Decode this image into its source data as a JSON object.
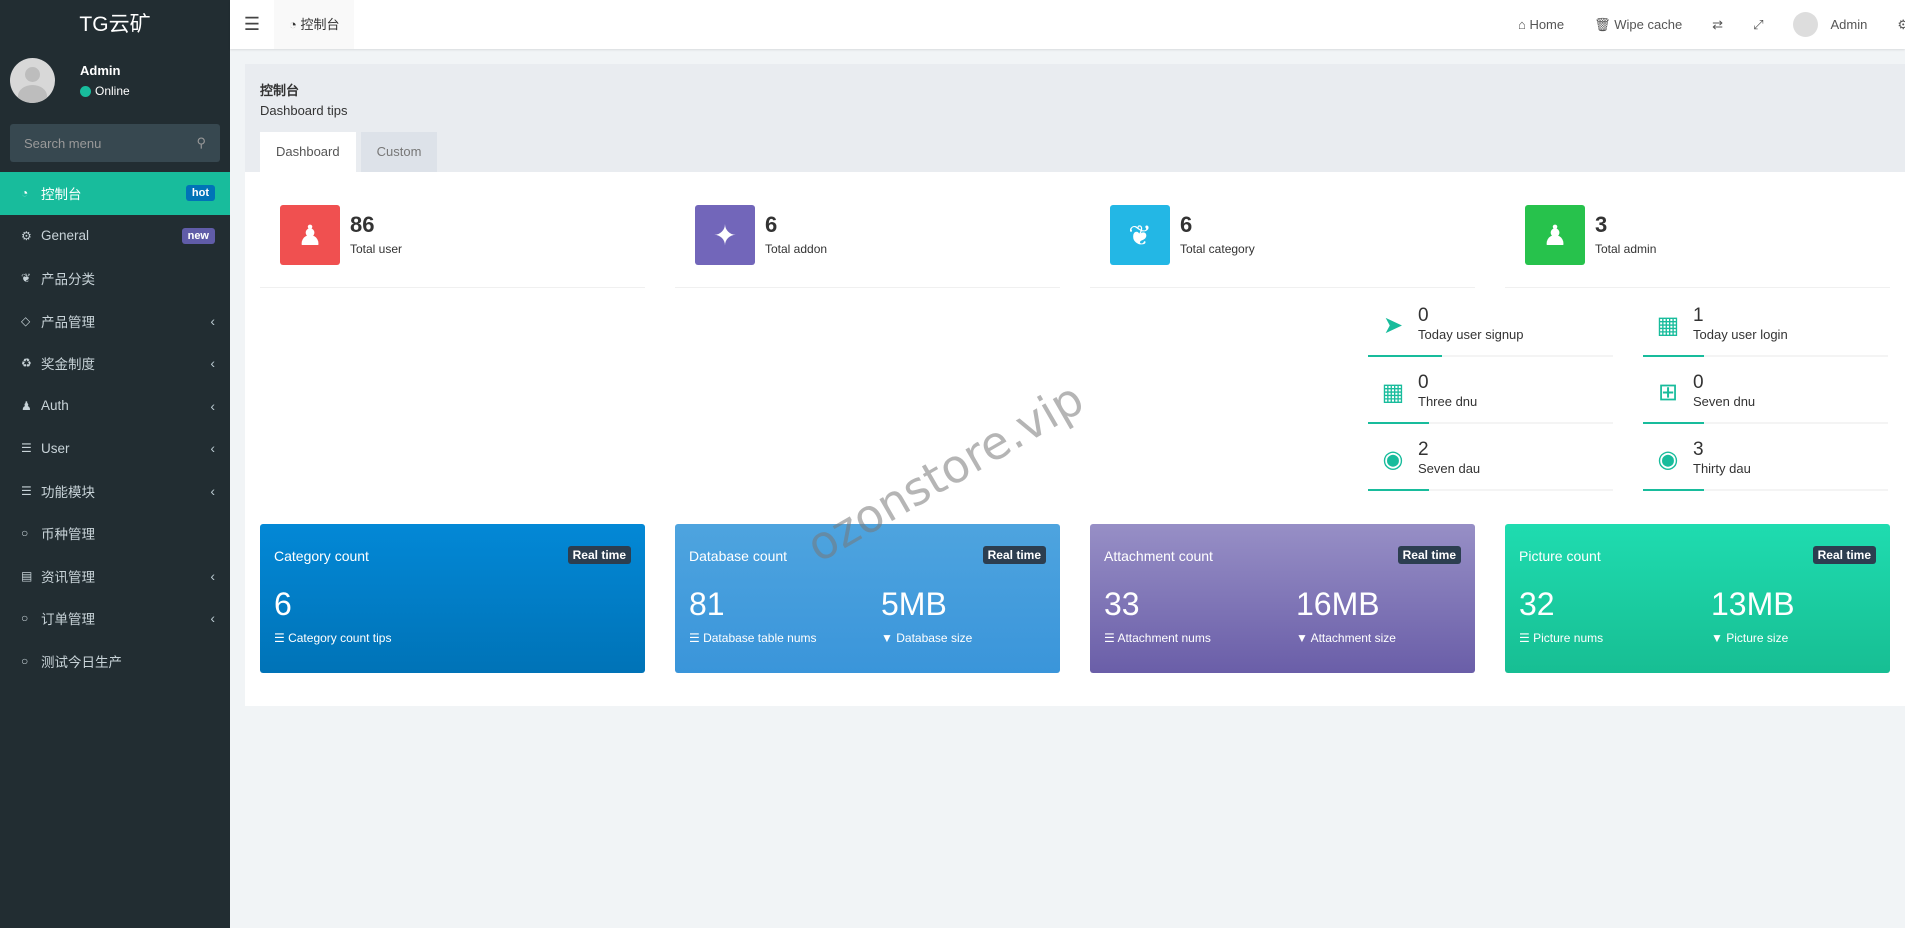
{
  "app": {
    "logo": "TG云矿",
    "watermark": "ozonstore.vip"
  },
  "user": {
    "name": "Admin",
    "status": "Online"
  },
  "search": {
    "placeholder": "Search menu"
  },
  "sidebar": {
    "items": [
      {
        "label": "控制台",
        "icon": "dashboard-icon",
        "badge": "hot",
        "badge_color": "#0073b7",
        "active": true
      },
      {
        "label": "General",
        "icon": "cogs-icon",
        "badge": "new",
        "badge_color": "#605ca8"
      },
      {
        "label": "产品分类",
        "icon": "leaf-icon"
      },
      {
        "label": "产品管理",
        "icon": "diamond-icon",
        "submenu": true
      },
      {
        "label": "奖金制度",
        "icon": "recycle-icon",
        "submenu": true
      },
      {
        "label": "Auth",
        "icon": "group-icon",
        "submenu": true
      },
      {
        "label": "User",
        "icon": "list-icon",
        "submenu": true
      },
      {
        "label": "功能模块",
        "icon": "list-icon",
        "submenu": true
      },
      {
        "label": "币种管理",
        "icon": "circle-icon"
      },
      {
        "label": "资讯管理",
        "icon": "newspaper-icon",
        "submenu": true
      },
      {
        "label": "订单管理",
        "icon": "circle-icon",
        "submenu": true
      },
      {
        "label": "测试今日生产",
        "icon": "circle-icon"
      }
    ]
  },
  "header": {
    "tab": "控制台",
    "home": "Home",
    "wipe": "Wipe cache",
    "admin": "Admin"
  },
  "page": {
    "title": "控制台",
    "tips": "Dashboard tips",
    "tabs": [
      "Dashboard",
      "Custom"
    ]
  },
  "stats": [
    {
      "value": "86",
      "label": "Total user",
      "color": "#f05050",
      "icon": "users-icon"
    },
    {
      "value": "6",
      "label": "Total addon",
      "color": "#7266ba",
      "icon": "magic-icon"
    },
    {
      "value": "6",
      "label": "Total category",
      "color": "#23b7e5",
      "icon": "leaf-icon"
    },
    {
      "value": "3",
      "label": "Total admin",
      "color": "#27c24c",
      "icon": "user-icon"
    }
  ],
  "mini": [
    {
      "value": "0",
      "label": "Today user signup",
      "icon": "rocket-icon",
      "progress": 30
    },
    {
      "value": "1",
      "label": "Today user login",
      "icon": "vcard-icon",
      "progress": 25
    },
    {
      "value": "0",
      "label": "Three dnu",
      "icon": "calendar-icon",
      "progress": 25
    },
    {
      "value": "0",
      "label": "Seven dnu",
      "icon": "calendar-plus-icon",
      "progress": 25
    },
    {
      "value": "2",
      "label": "Seven dau",
      "icon": "user-circle-icon",
      "progress": 25
    },
    {
      "value": "3",
      "label": "Thirty dau",
      "icon": "user-circle-icon",
      "progress": 25
    }
  ],
  "cards": [
    {
      "title": "Category count",
      "badge": "Real time",
      "v1": "6",
      "l1": "Category count tips",
      "gradient": [
        "#0388d6",
        "#0073b7"
      ]
    },
    {
      "title": "Database count",
      "badge": "Real time",
      "v1": "81",
      "l1": "Database table nums",
      "v2": "5MB",
      "l2": "Database size",
      "gradient": [
        "#4ea4df",
        "#3a95da"
      ]
    },
    {
      "title": "Attachment count",
      "badge": "Real time",
      "v1": "33",
      "l1": "Attachment nums",
      "v2": "16MB",
      "l2": "Attachment size",
      "gradient": [
        "#978fc6",
        "#6a5ea8"
      ]
    },
    {
      "title": "Picture count",
      "badge": "Real time",
      "v1": "32",
      "l1": "Picture nums",
      "v2": "13MB",
      "l2": "Picture size",
      "gradient": [
        "#1fdcb0",
        "#17be93"
      ]
    }
  ]
}
